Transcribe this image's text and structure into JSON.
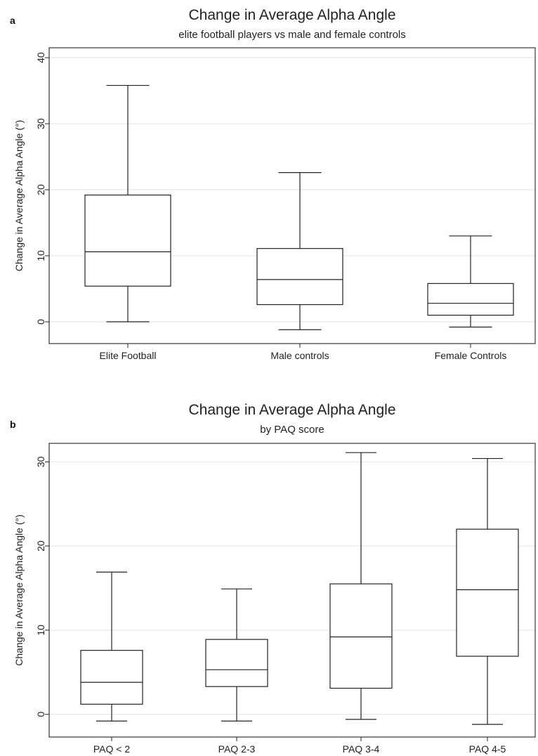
{
  "chart_data": [
    {
      "type": "box",
      "panel_label": "a",
      "title": "Change in Average Alpha Angle",
      "subtitle": "elite football players vs male and female controls",
      "xlabel": "",
      "ylabel": "Change in Average Alpha Angle (°)",
      "ylim": [
        -3.3,
        41.5
      ],
      "yticks": [
        0,
        10,
        20,
        30,
        40
      ],
      "grid": true,
      "categories": [
        "Elite Football",
        "Male controls",
        "Female Controls"
      ],
      "boxes": [
        {
          "min": 0.0,
          "q1": 5.4,
          "median": 10.6,
          "q3": 19.2,
          "max": 35.8
        },
        {
          "min": -1.2,
          "q1": 2.6,
          "median": 6.4,
          "q3": 11.1,
          "max": 22.6
        },
        {
          "min": -0.8,
          "q1": 1.0,
          "median": 2.8,
          "q3": 5.8,
          "max": 13.0
        }
      ]
    },
    {
      "type": "box",
      "panel_label": "b",
      "title": "Change in Average Alpha Angle",
      "subtitle": "by PAQ score",
      "xlabel": "",
      "ylabel": "Change in Average Alpha Angle (°)",
      "ylim": [
        -2.7,
        32.2
      ],
      "yticks": [
        0,
        10,
        20,
        30
      ],
      "grid": true,
      "categories": [
        "PAQ < 2",
        "PAQ 2-3",
        "PAQ 3-4",
        "PAQ 4-5"
      ],
      "boxes": [
        {
          "min": -0.8,
          "q1": 1.2,
          "median": 3.8,
          "q3": 7.6,
          "max": 16.9
        },
        {
          "min": -0.8,
          "q1": 3.3,
          "median": 5.3,
          "q3": 8.9,
          "max": 14.9
        },
        {
          "min": -0.6,
          "q1": 3.1,
          "median": 9.2,
          "q3": 15.5,
          "max": 31.1
        },
        {
          "min": -1.2,
          "q1": 6.9,
          "median": 14.8,
          "q3": 22.0,
          "max": 30.4
        }
      ]
    }
  ]
}
